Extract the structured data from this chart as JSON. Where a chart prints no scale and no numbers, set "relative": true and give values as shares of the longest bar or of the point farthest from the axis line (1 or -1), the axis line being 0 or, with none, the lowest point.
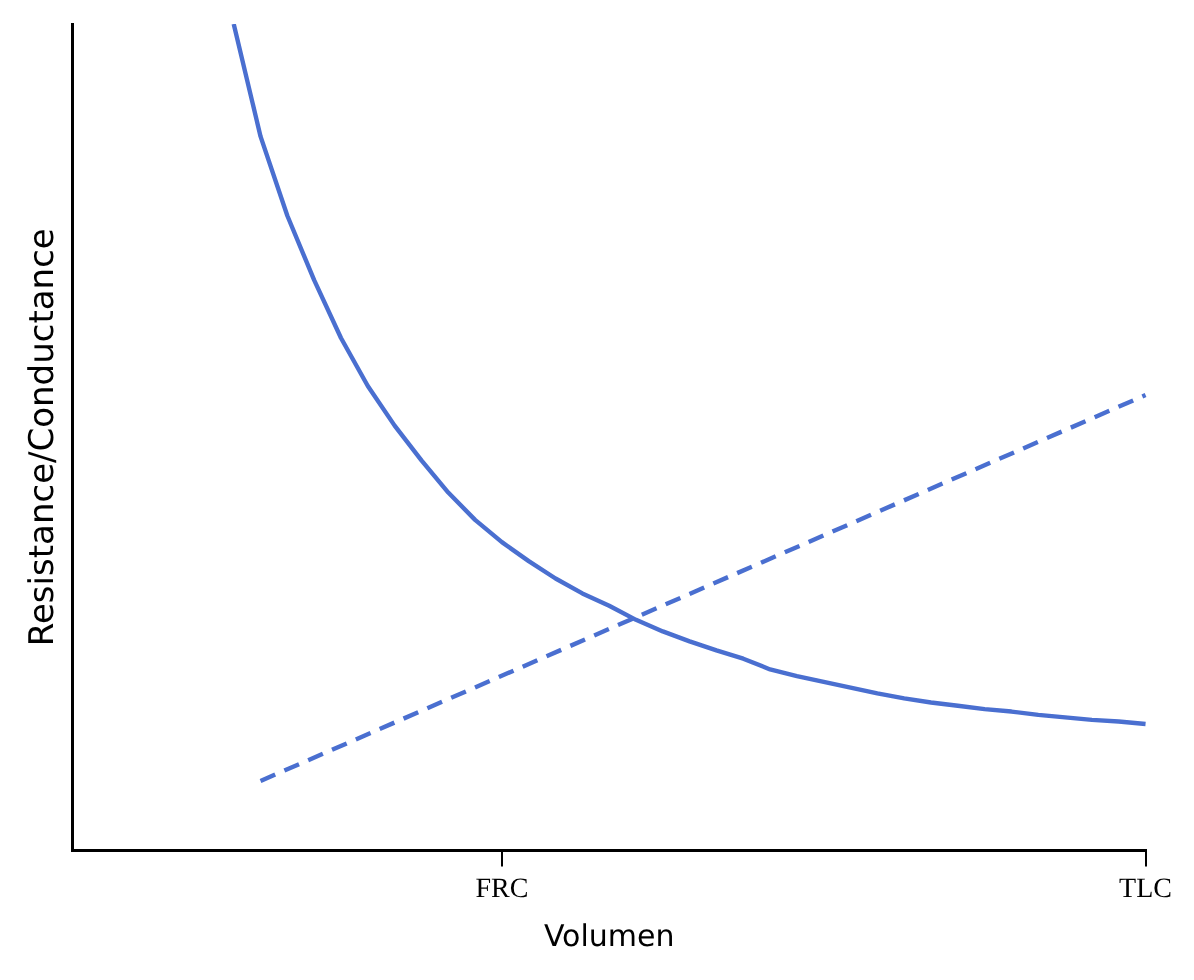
{
  "chart_data": {
    "type": "line",
    "relative": true,
    "xlabel": "Volumen",
    "ylabel": "Resistance/Conductance",
    "grid": false,
    "legend": false,
    "categories": [
      null,
      null,
      null,
      null,
      null,
      null,
      null,
      null,
      null,
      null,
      null,
      null,
      null,
      null,
      null,
      null,
      "FRC",
      null,
      null,
      null,
      null,
      null,
      null,
      null,
      null,
      null,
      null,
      null,
      null,
      null,
      null,
      null,
      null,
      null,
      null,
      null,
      null,
      null,
      null,
      null,
      "TLC"
    ],
    "series": [
      {
        "color": "#4a6fd0",
        "line_style": "solid",
        "values": [
          null,
          null,
          null,
          null,
          null,
          null,
          1,
          0.864,
          0.768,
          0.69,
          0.62,
          0.562,
          0.514,
          0.472,
          0.433,
          0.4,
          0.373,
          0.35,
          0.329,
          0.311,
          0.296,
          0.279,
          0.265,
          0.253,
          0.242,
          0.232,
          0.219,
          0.211,
          0.204,
          0.197,
          0.19,
          0.184,
          0.179,
          0.175,
          0.171,
          0.168,
          0.164,
          0.161,
          0.158,
          0.156,
          0.153
        ]
      },
      {
        "color": "#4a6fd0",
        "line_style": "dashed",
        "values": [
          null,
          null,
          null,
          null,
          null,
          null,
          null,
          0.084,
          null,
          null,
          null,
          null,
          null,
          null,
          null,
          null,
          null,
          null,
          null,
          null,
          null,
          null,
          null,
          null,
          null,
          null,
          null,
          null,
          null,
          null,
          null,
          null,
          null,
          null,
          null,
          null,
          null,
          null,
          null,
          null,
          0.551
        ]
      }
    ]
  }
}
